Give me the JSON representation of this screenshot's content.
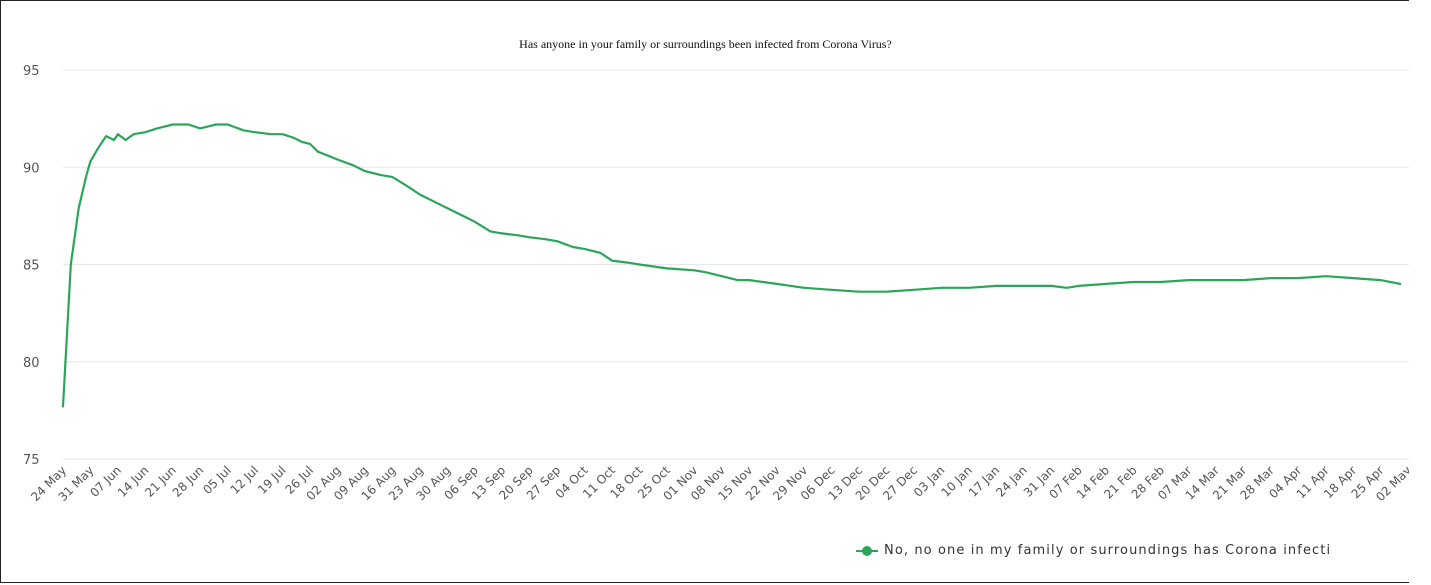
{
  "colors": {
    "series": "#2aa55a",
    "grid": "#e6e6e6"
  },
  "chart_data": {
    "type": "line",
    "title": "Has anyone in your family or surroundings been infected from Corona Virus?",
    "xlabel": "",
    "ylabel": "",
    "ylim": [
      75,
      95
    ],
    "yticks": [
      "75",
      "80",
      "85",
      "90",
      "95"
    ],
    "grid": true,
    "legend_position": "bottom-right",
    "x_tick_labels": [
      "24 May",
      "31 May",
      "07 Jun",
      "14 Jun",
      "21 Jun",
      "28 Jun",
      "05 Jul",
      "12 Jul",
      "19 Jul",
      "26 Jul",
      "02 Aug",
      "09 Aug",
      "16 Aug",
      "23 Aug",
      "30 Aug",
      "06 Sep",
      "13 Sep",
      "20 Sep",
      "27 Sep",
      "04 Oct",
      "11 Oct",
      "18 Oct",
      "25 Oct",
      "01 Nov",
      "08 Nov",
      "15 Nov",
      "22 Nov",
      "29 Nov",
      "06 Dec",
      "13 Dec",
      "20 Dec",
      "27 Dec",
      "03 Jan",
      "10 Jan",
      "17 Jan",
      "24 Jan",
      "31 Jan",
      "07 Feb",
      "14 Feb",
      "21 Feb",
      "28 Feb",
      "07 Mar",
      "14 Mar",
      "21 Mar",
      "28 Mar",
      "04 Apr",
      "11 Apr",
      "18 Apr",
      "25 Apr",
      "02 May"
    ],
    "series": [
      {
        "name": "No, no one in my family or surroundings has Corona infecti",
        "points": [
          [
            "24 May",
            77.7
          ],
          [
            "26 May",
            85.0
          ],
          [
            "28 May",
            87.9
          ],
          [
            "30 May",
            89.6
          ],
          [
            "31 May",
            90.3
          ],
          [
            "02 Jun",
            91.0
          ],
          [
            "04 Jun",
            91.6
          ],
          [
            "06 Jun",
            91.4
          ],
          [
            "07 Jun",
            91.7
          ],
          [
            "09 Jun",
            91.4
          ],
          [
            "11 Jun",
            91.7
          ],
          [
            "14 Jun",
            91.8
          ],
          [
            "17 Jun",
            92.0
          ],
          [
            "21 Jun",
            92.2
          ],
          [
            "25 Jun",
            92.2
          ],
          [
            "28 Jun",
            92.0
          ],
          [
            "02 Jul",
            92.2
          ],
          [
            "05 Jul",
            92.2
          ],
          [
            "09 Jul",
            91.9
          ],
          [
            "12 Jul",
            91.8
          ],
          [
            "16 Jul",
            91.7
          ],
          [
            "19 Jul",
            91.7
          ],
          [
            "22 Jul",
            91.5
          ],
          [
            "24 Jul",
            91.3
          ],
          [
            "26 Jul",
            91.2
          ],
          [
            "28 Jul",
            90.8
          ],
          [
            "02 Aug",
            90.4
          ],
          [
            "06 Aug",
            90.1
          ],
          [
            "09 Aug",
            89.8
          ],
          [
            "13 Aug",
            89.6
          ],
          [
            "16 Aug",
            89.5
          ],
          [
            "20 Aug",
            89.0
          ],
          [
            "23 Aug",
            88.6
          ],
          [
            "27 Aug",
            88.2
          ],
          [
            "30 Aug",
            87.9
          ],
          [
            "03 Sep",
            87.5
          ],
          [
            "06 Sep",
            87.2
          ],
          [
            "10 Sep",
            86.7
          ],
          [
            "13 Sep",
            86.6
          ],
          [
            "17 Sep",
            86.5
          ],
          [
            "20 Sep",
            86.4
          ],
          [
            "24 Sep",
            86.3
          ],
          [
            "27 Sep",
            86.2
          ],
          [
            "01 Oct",
            85.9
          ],
          [
            "04 Oct",
            85.8
          ],
          [
            "08 Oct",
            85.6
          ],
          [
            "11 Oct",
            85.2
          ],
          [
            "15 Oct",
            85.1
          ],
          [
            "18 Oct",
            85.0
          ],
          [
            "25 Oct",
            84.8
          ],
          [
            "01 Nov",
            84.7
          ],
          [
            "04 Nov",
            84.6
          ],
          [
            "08 Nov",
            84.4
          ],
          [
            "12 Nov",
            84.2
          ],
          [
            "15 Nov",
            84.2
          ],
          [
            "22 Nov",
            84.0
          ],
          [
            "29 Nov",
            83.8
          ],
          [
            "06 Dec",
            83.7
          ],
          [
            "13 Dec",
            83.6
          ],
          [
            "20 Dec",
            83.6
          ],
          [
            "27 Dec",
            83.7
          ],
          [
            "03 Jan",
            83.8
          ],
          [
            "10 Jan",
            83.8
          ],
          [
            "17 Jan",
            83.9
          ],
          [
            "24 Jan",
            83.9
          ],
          [
            "31 Jan",
            83.9
          ],
          [
            "04 Feb",
            83.8
          ],
          [
            "07 Feb",
            83.9
          ],
          [
            "14 Feb",
            84.0
          ],
          [
            "21 Feb",
            84.1
          ],
          [
            "28 Feb",
            84.1
          ],
          [
            "07 Mar",
            84.2
          ],
          [
            "14 Mar",
            84.2
          ],
          [
            "21 Mar",
            84.2
          ],
          [
            "28 Mar",
            84.3
          ],
          [
            "04 Apr",
            84.3
          ],
          [
            "11 Apr",
            84.4
          ],
          [
            "18 Apr",
            84.3
          ],
          [
            "25 Apr",
            84.2
          ],
          [
            "30 Apr",
            84.0
          ]
        ]
      }
    ]
  }
}
